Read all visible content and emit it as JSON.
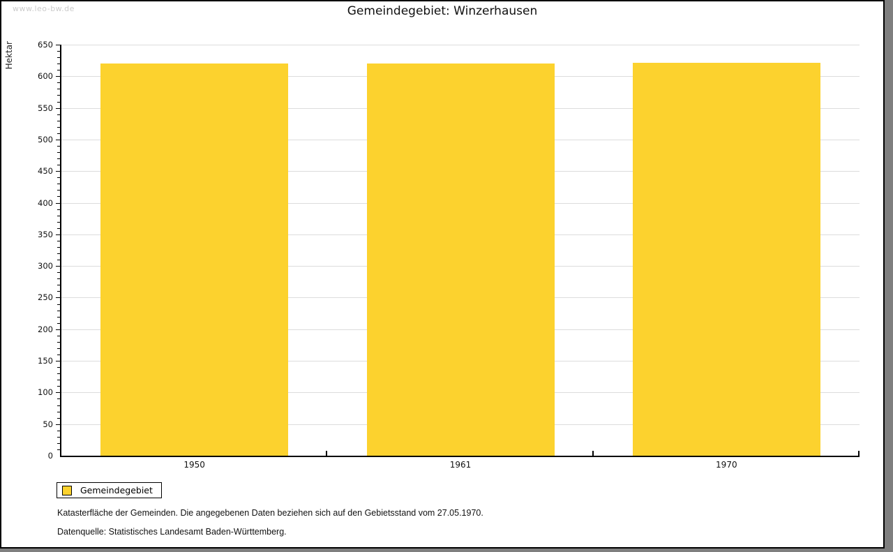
{
  "watermark": "www.leo-bw.de",
  "title": "Gemeindegebiet: Winzerhausen",
  "chart_data": {
    "type": "bar",
    "title": "Gemeindegebiet: Winzerhausen",
    "categories": [
      "1950",
      "1961",
      "1970"
    ],
    "series": [
      {
        "name": "Gemeindegebiet",
        "values": [
          620,
          620,
          621
        ]
      }
    ],
    "xlabel": "",
    "ylabel": "Hektar",
    "ylim": [
      0,
      650
    ],
    "ytick_step": 50,
    "yminor_step": 10,
    "grid": true,
    "legend_position": "bottom-left",
    "bar_color": "#fcd22e"
  },
  "legend": {
    "items": [
      {
        "label": "Gemeindegebiet",
        "color": "#fcd22e"
      }
    ]
  },
  "footnotes": [
    "Katasterfläche der Gemeinden. Die angegebenen Daten beziehen sich auf den Gebietsstand vom 27.05.1970.",
    "Datenquelle: Statistisches Landesamt Baden-Württemberg."
  ]
}
